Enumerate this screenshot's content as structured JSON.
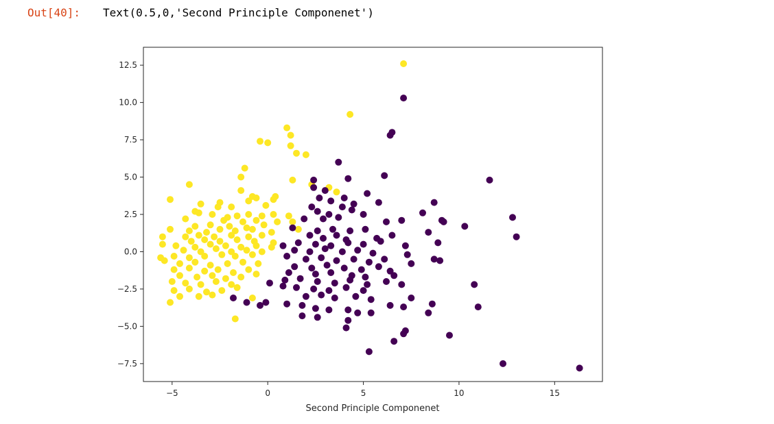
{
  "cell": {
    "prompt": "Out[40]:",
    "output_text": "Text(0.5,0,'Second Principle Componenet')"
  },
  "colors": {
    "class_0": "#440154",
    "class_1": "#fde725",
    "axes": "#262626"
  },
  "chart_data": {
    "type": "scatter",
    "title": "",
    "xlabel": "Second Principle Componenet",
    "ylabel": "",
    "xlim": [
      -6.5,
      17.5
    ],
    "ylim": [
      -8.7,
      13.7
    ],
    "xticks": [
      -5,
      0,
      5,
      10,
      15
    ],
    "yticks": [
      -7.5,
      -5.0,
      -2.5,
      0.0,
      2.5,
      5.0,
      7.5,
      10.0,
      12.5
    ],
    "xtick_labels": [
      "−5",
      "0",
      "5",
      "10",
      "15"
    ],
    "ytick_labels": [
      "−7.5",
      "−5.0",
      "−2.5",
      "0.0",
      "2.5",
      "5.0",
      "7.5",
      "10.0",
      "12.5"
    ],
    "grid": false,
    "legend": "none",
    "series": [
      {
        "color": "#fde725",
        "points": [
          [
            7.1,
            12.6
          ],
          [
            4.3,
            9.2
          ],
          [
            1.0,
            8.3
          ],
          [
            1.2,
            7.8
          ],
          [
            1.2,
            7.1
          ],
          [
            0.0,
            7.3
          ],
          [
            -0.4,
            7.4
          ],
          [
            1.5,
            6.6
          ],
          [
            2.0,
            6.5
          ],
          [
            -1.2,
            5.6
          ],
          [
            -1.4,
            5.0
          ],
          [
            1.3,
            4.8
          ],
          [
            2.3,
            4.5
          ],
          [
            3.2,
            4.3
          ],
          [
            -4.1,
            4.5
          ],
          [
            -1.4,
            4.1
          ],
          [
            3.6,
            4.0
          ],
          [
            -0.8,
            3.7
          ],
          [
            -0.6,
            3.6
          ],
          [
            0.4,
            3.7
          ],
          [
            0.3,
            3.5
          ],
          [
            -5.1,
            3.5
          ],
          [
            -3.5,
            3.2
          ],
          [
            -2.5,
            3.3
          ],
          [
            -2.6,
            3.0
          ],
          [
            -1.0,
            3.4
          ],
          [
            -1.9,
            3.0
          ],
          [
            -0.1,
            3.1
          ],
          [
            -3.8,
            2.7
          ],
          [
            -3.6,
            2.6
          ],
          [
            -2.9,
            2.5
          ],
          [
            -2.1,
            2.3
          ],
          [
            -1.6,
            2.4
          ],
          [
            -1.0,
            2.5
          ],
          [
            -0.3,
            2.4
          ],
          [
            0.3,
            2.5
          ],
          [
            1.1,
            2.4
          ],
          [
            1.3,
            2.0
          ],
          [
            -4.3,
            2.2
          ],
          [
            -2.3,
            2.1
          ],
          [
            -1.3,
            2.0
          ],
          [
            -0.6,
            2.1
          ],
          [
            0.5,
            2.0
          ],
          [
            -3.8,
            1.7
          ],
          [
            -3.0,
            1.8
          ],
          [
            -2.0,
            1.7
          ],
          [
            -1.1,
            1.6
          ],
          [
            -0.2,
            1.8
          ],
          [
            1.6,
            1.5
          ],
          [
            -4.1,
            1.4
          ],
          [
            -3.2,
            1.3
          ],
          [
            -2.5,
            1.5
          ],
          [
            -1.7,
            1.4
          ],
          [
            -0.8,
            1.5
          ],
          [
            0.2,
            1.3
          ],
          [
            -5.1,
            1.5
          ],
          [
            -4.3,
            1.0
          ],
          [
            -3.6,
            1.1
          ],
          [
            -2.8,
            1.0
          ],
          [
            -1.9,
            1.1
          ],
          [
            -1.0,
            1.0
          ],
          [
            -0.3,
            1.1
          ],
          [
            -5.5,
            1.0
          ],
          [
            -4.0,
            0.7
          ],
          [
            -3.3,
            0.8
          ],
          [
            -2.5,
            0.7
          ],
          [
            -1.6,
            0.8
          ],
          [
            -0.7,
            0.7
          ],
          [
            0.3,
            0.6
          ],
          [
            -5.5,
            0.5
          ],
          [
            -4.8,
            0.4
          ],
          [
            -3.8,
            0.3
          ],
          [
            -3.0,
            0.5
          ],
          [
            -2.2,
            0.4
          ],
          [
            -1.4,
            0.3
          ],
          [
            -0.6,
            0.4
          ],
          [
            0.2,
            0.3
          ],
          [
            -4.4,
            0.1
          ],
          [
            -3.5,
            0.0
          ],
          [
            -2.7,
            0.2
          ],
          [
            -1.9,
            0.0
          ],
          [
            -1.1,
            0.1
          ],
          [
            -0.3,
            0.0
          ],
          [
            -5.6,
            -0.4
          ],
          [
            -4.9,
            -0.3
          ],
          [
            -4.1,
            -0.4
          ],
          [
            -3.3,
            -0.3
          ],
          [
            -2.4,
            -0.2
          ],
          [
            -1.7,
            -0.3
          ],
          [
            -0.8,
            -0.2
          ],
          [
            -5.4,
            -0.6
          ],
          [
            -4.6,
            -0.8
          ],
          [
            -3.8,
            -0.7
          ],
          [
            -3.0,
            -0.9
          ],
          [
            -2.1,
            -0.8
          ],
          [
            -1.3,
            -0.7
          ],
          [
            -0.5,
            -0.8
          ],
          [
            -4.9,
            -1.2
          ],
          [
            -4.1,
            -1.1
          ],
          [
            -3.3,
            -1.3
          ],
          [
            -2.6,
            -1.2
          ],
          [
            -1.8,
            -1.4
          ],
          [
            -1.0,
            -1.2
          ],
          [
            -4.6,
            -1.6
          ],
          [
            -3.7,
            -1.7
          ],
          [
            -2.9,
            -1.6
          ],
          [
            -2.2,
            -1.8
          ],
          [
            -1.4,
            -1.7
          ],
          [
            -0.6,
            -1.5
          ],
          [
            -5.0,
            -2.0
          ],
          [
            -4.3,
            -2.1
          ],
          [
            -3.5,
            -2.2
          ],
          [
            -2.7,
            -2.0
          ],
          [
            -1.9,
            -2.2
          ],
          [
            -4.9,
            -2.6
          ],
          [
            -4.1,
            -2.5
          ],
          [
            -3.2,
            -2.7
          ],
          [
            -2.4,
            -2.6
          ],
          [
            -1.6,
            -2.4
          ],
          [
            -4.6,
            -3.0
          ],
          [
            -3.6,
            -3.0
          ],
          [
            -2.9,
            -2.9
          ],
          [
            -5.1,
            -3.4
          ],
          [
            -0.8,
            -3.1
          ],
          [
            -1.7,
            -4.5
          ]
        ]
      },
      {
        "color": "#440154",
        "points": [
          [
            7.1,
            10.3
          ],
          [
            6.5,
            8.0
          ],
          [
            6.4,
            7.8
          ],
          [
            3.7,
            6.0
          ],
          [
            6.1,
            5.1
          ],
          [
            11.6,
            4.8
          ],
          [
            4.2,
            4.9
          ],
          [
            2.4,
            4.8
          ],
          [
            2.4,
            4.3
          ],
          [
            3.0,
            4.1
          ],
          [
            5.2,
            3.9
          ],
          [
            4.0,
            3.6
          ],
          [
            3.3,
            3.4
          ],
          [
            2.7,
            3.6
          ],
          [
            8.7,
            3.3
          ],
          [
            2.3,
            3.0
          ],
          [
            3.9,
            3.0
          ],
          [
            4.5,
            3.2
          ],
          [
            5.8,
            3.3
          ],
          [
            2.6,
            2.7
          ],
          [
            3.2,
            2.5
          ],
          [
            4.4,
            2.8
          ],
          [
            5.0,
            2.5
          ],
          [
            8.1,
            2.6
          ],
          [
            12.8,
            2.3
          ],
          [
            9.1,
            2.1
          ],
          [
            1.9,
            2.2
          ],
          [
            2.9,
            2.2
          ],
          [
            3.7,
            2.3
          ],
          [
            6.2,
            2.0
          ],
          [
            7.0,
            2.1
          ],
          [
            9.2,
            2.0
          ],
          [
            10.3,
            1.7
          ],
          [
            2.6,
            1.4
          ],
          [
            3.4,
            1.5
          ],
          [
            4.3,
            1.4
          ],
          [
            5.1,
            1.5
          ],
          [
            1.3,
            1.6
          ],
          [
            2.2,
            1.1
          ],
          [
            2.9,
            0.9
          ],
          [
            3.6,
            1.1
          ],
          [
            4.1,
            0.8
          ],
          [
            5.7,
            0.9
          ],
          [
            6.5,
            1.1
          ],
          [
            8.4,
            1.3
          ],
          [
            13.0,
            1.0
          ],
          [
            1.6,
            0.6
          ],
          [
            2.5,
            0.5
          ],
          [
            3.3,
            0.4
          ],
          [
            4.2,
            0.6
          ],
          [
            5.0,
            0.5
          ],
          [
            5.9,
            0.7
          ],
          [
            7.2,
            0.4
          ],
          [
            8.9,
            0.6
          ],
          [
            0.8,
            0.4
          ],
          [
            1.4,
            0.1
          ],
          [
            2.2,
            0.0
          ],
          [
            3.0,
            0.2
          ],
          [
            3.9,
            0.0
          ],
          [
            4.7,
            0.1
          ],
          [
            5.5,
            -0.1
          ],
          [
            7.3,
            -0.2
          ],
          [
            1.0,
            -0.3
          ],
          [
            2.0,
            -0.5
          ],
          [
            2.8,
            -0.4
          ],
          [
            3.6,
            -0.6
          ],
          [
            4.5,
            -0.5
          ],
          [
            5.3,
            -0.7
          ],
          [
            6.1,
            -0.5
          ],
          [
            7.5,
            -0.8
          ],
          [
            8.7,
            -0.5
          ],
          [
            9.0,
            -0.6
          ],
          [
            1.4,
            -1.0
          ],
          [
            2.3,
            -1.1
          ],
          [
            3.1,
            -0.9
          ],
          [
            4.0,
            -1.1
          ],
          [
            4.9,
            -1.2
          ],
          [
            5.8,
            -1.0
          ],
          [
            6.4,
            -1.3
          ],
          [
            1.1,
            -1.4
          ],
          [
            2.5,
            -1.5
          ],
          [
            3.3,
            -1.4
          ],
          [
            4.4,
            -1.6
          ],
          [
            5.1,
            -1.7
          ],
          [
            6.6,
            -1.6
          ],
          [
            0.9,
            -1.9
          ],
          [
            1.7,
            -1.8
          ],
          [
            2.6,
            -2.0
          ],
          [
            3.5,
            -2.1
          ],
          [
            4.3,
            -1.9
          ],
          [
            5.2,
            -2.2
          ],
          [
            6.2,
            -2.0
          ],
          [
            7.0,
            -2.2
          ],
          [
            10.8,
            -2.2
          ],
          [
            0.1,
            -2.1
          ],
          [
            0.8,
            -2.3
          ],
          [
            1.5,
            -2.4
          ],
          [
            2.4,
            -2.5
          ],
          [
            3.2,
            -2.6
          ],
          [
            4.1,
            -2.4
          ],
          [
            5.0,
            -2.6
          ],
          [
            2.0,
            -3.0
          ],
          [
            2.8,
            -2.9
          ],
          [
            3.5,
            -3.1
          ],
          [
            4.6,
            -3.0
          ],
          [
            5.4,
            -3.2
          ],
          [
            7.5,
            -3.1
          ],
          [
            -1.8,
            -3.1
          ],
          [
            -1.1,
            -3.4
          ],
          [
            -0.1,
            -3.4
          ],
          [
            1.0,
            -3.5
          ],
          [
            1.8,
            -3.6
          ],
          [
            2.5,
            -3.8
          ],
          [
            3.2,
            -3.9
          ],
          [
            4.2,
            -3.9
          ],
          [
            6.4,
            -3.6
          ],
          [
            7.1,
            -3.7
          ],
          [
            8.6,
            -3.5
          ],
          [
            11.0,
            -3.7
          ],
          [
            -0.4,
            -3.6
          ],
          [
            1.8,
            -4.3
          ],
          [
            2.6,
            -4.4
          ],
          [
            4.7,
            -4.1
          ],
          [
            5.4,
            -4.1
          ],
          [
            8.4,
            -4.1
          ],
          [
            4.2,
            -4.6
          ],
          [
            4.1,
            -5.1
          ],
          [
            7.2,
            -5.3
          ],
          [
            7.1,
            -5.5
          ],
          [
            6.6,
            -6.0
          ],
          [
            9.5,
            -5.6
          ],
          [
            5.3,
            -6.7
          ],
          [
            12.3,
            -7.5
          ],
          [
            16.3,
            -7.8
          ]
        ]
      }
    ]
  }
}
